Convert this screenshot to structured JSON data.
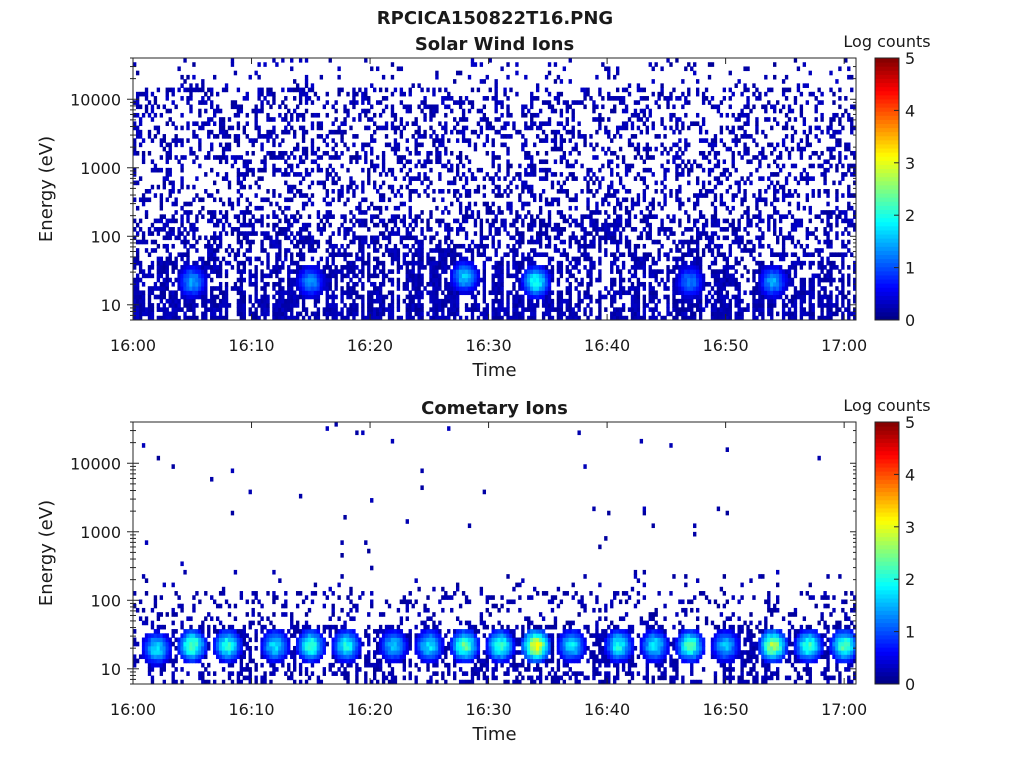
{
  "figure": {
    "title": "RPCICA150822T16.PNG"
  },
  "chart_data": [
    {
      "type": "heatmap",
      "title": "Solar Wind Ions",
      "xlabel": "Time",
      "ylabel": "Energy (eV)",
      "x_ticks": [
        "16:00",
        "16:10",
        "16:20",
        "16:30",
        "16:40",
        "16:50",
        "17:00"
      ],
      "x_range": [
        "16:00",
        "17:01"
      ],
      "y_scale": "log",
      "y_ticks": [
        "10",
        "100",
        "1000",
        "10000"
      ],
      "y_range": [
        6,
        40000
      ],
      "colorbar": {
        "label": "Log counts",
        "min": 0,
        "max": 5,
        "ticks": [
          "0",
          "1",
          "2",
          "3",
          "4",
          "5"
        ],
        "colormap": "jet"
      },
      "hot_spots": [
        {
          "time": "16:05",
          "energy_eV": 22,
          "log_counts": 1.6
        },
        {
          "time": "16:15",
          "energy_eV": 22,
          "log_counts": 1.5
        },
        {
          "time": "16:28",
          "energy_eV": 26,
          "log_counts": 1.8
        },
        {
          "time": "16:34",
          "energy_eV": 22,
          "log_counts": 2.2
        },
        {
          "time": "16:47",
          "energy_eV": 22,
          "log_counts": 1.4
        },
        {
          "time": "16:54",
          "energy_eV": 22,
          "log_counts": 1.6
        }
      ]
    },
    {
      "type": "heatmap",
      "title": "Cometary Ions",
      "xlabel": "Time",
      "ylabel": "Energy (eV)",
      "x_ticks": [
        "16:00",
        "16:10",
        "16:20",
        "16:30",
        "16:40",
        "16:50",
        "17:00"
      ],
      "x_range": [
        "16:00",
        "17:01"
      ],
      "y_scale": "log",
      "y_ticks": [
        "10",
        "100",
        "1000",
        "10000"
      ],
      "y_range": [
        6,
        40000
      ],
      "colorbar": {
        "label": "Log counts",
        "min": 0,
        "max": 5,
        "ticks": [
          "0",
          "1",
          "2",
          "3",
          "4",
          "5"
        ],
        "colormap": "jet"
      },
      "hot_spots": [
        {
          "time": "16:02",
          "energy_eV": 20,
          "log_counts": 2.0
        },
        {
          "time": "16:05",
          "energy_eV": 22,
          "log_counts": 2.6
        },
        {
          "time": "16:08",
          "energy_eV": 22,
          "log_counts": 2.3
        },
        {
          "time": "16:12",
          "energy_eV": 22,
          "log_counts": 2.0
        },
        {
          "time": "16:15",
          "energy_eV": 22,
          "log_counts": 2.4
        },
        {
          "time": "16:18",
          "energy_eV": 22,
          "log_counts": 2.2
        },
        {
          "time": "16:22",
          "energy_eV": 22,
          "log_counts": 1.8
        },
        {
          "time": "16:25",
          "energy_eV": 22,
          "log_counts": 2.0
        },
        {
          "time": "16:28",
          "energy_eV": 22,
          "log_counts": 2.6
        },
        {
          "time": "16:31",
          "energy_eV": 22,
          "log_counts": 2.4
        },
        {
          "time": "16:34",
          "energy_eV": 22,
          "log_counts": 3.4
        },
        {
          "time": "16:37",
          "energy_eV": 22,
          "log_counts": 2.0
        },
        {
          "time": "16:41",
          "energy_eV": 22,
          "log_counts": 2.2
        },
        {
          "time": "16:44",
          "energy_eV": 22,
          "log_counts": 2.0
        },
        {
          "time": "16:47",
          "energy_eV": 22,
          "log_counts": 2.5
        },
        {
          "time": "16:50",
          "energy_eV": 22,
          "log_counts": 1.8
        },
        {
          "time": "16:54",
          "energy_eV": 22,
          "log_counts": 3.0
        },
        {
          "time": "16:57",
          "energy_eV": 22,
          "log_counts": 2.4
        },
        {
          "time": "17:00",
          "energy_eV": 22,
          "log_counts": 2.5
        }
      ]
    }
  ]
}
